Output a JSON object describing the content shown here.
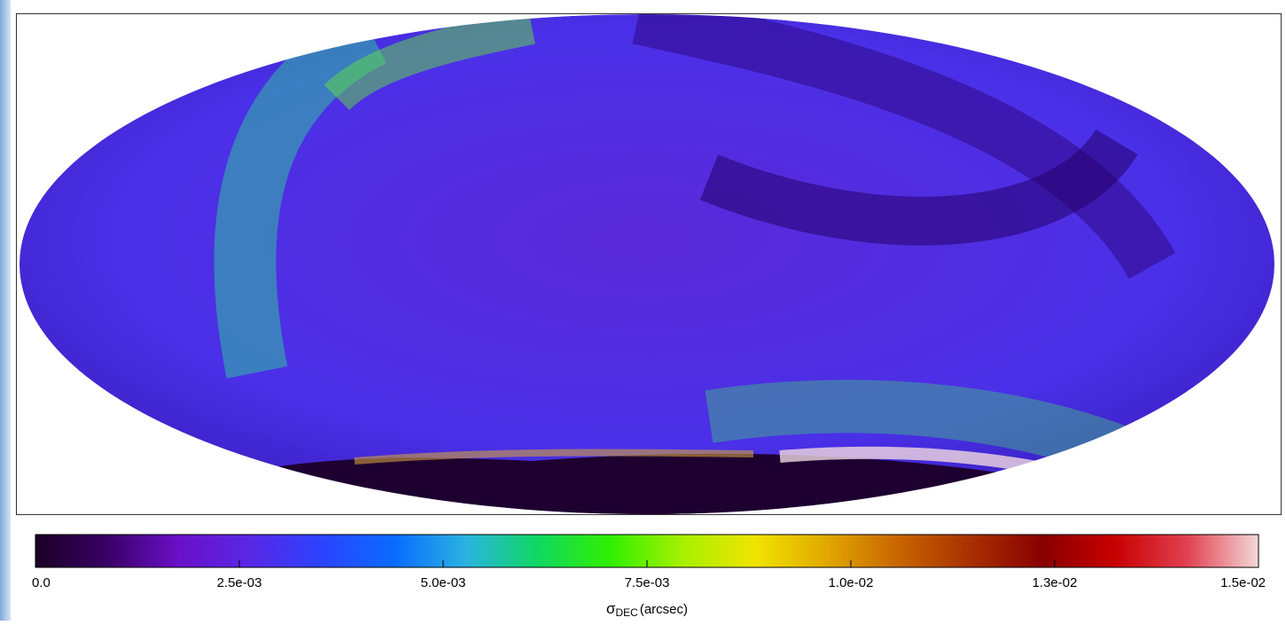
{
  "chart_data": {
    "type": "colorbar-map",
    "axis_label": {
      "symbol": "σ",
      "subscript": "DEC",
      "unit": "(arcsec)"
    },
    "clim": [
      0,
      0.015
    ],
    "cticks": [
      {
        "value": 0,
        "label": "0.0"
      },
      {
        "value": 0.0025,
        "label": "2.5e-03"
      },
      {
        "value": 0.005,
        "label": "5.0e-03"
      },
      {
        "value": 0.0075,
        "label": "7.5e-03"
      },
      {
        "value": 0.01,
        "label": "1.0e-02"
      },
      {
        "value": 0.0125,
        "label": "1.3e-02"
      },
      {
        "value": 0.015,
        "label": "1.5e-02"
      }
    ],
    "colormap": [
      "#1a0024",
      "#3a0066",
      "#6a10c8",
      "#5828e6",
      "#2a44ff",
      "#0a6cff",
      "#2ab4e0",
      "#10d860",
      "#30f000",
      "#a8f000",
      "#f0e400",
      "#e0a800",
      "#c86400",
      "#a83000",
      "#880000",
      "#c80000",
      "#e04050",
      "#f4d8d8"
    ]
  }
}
